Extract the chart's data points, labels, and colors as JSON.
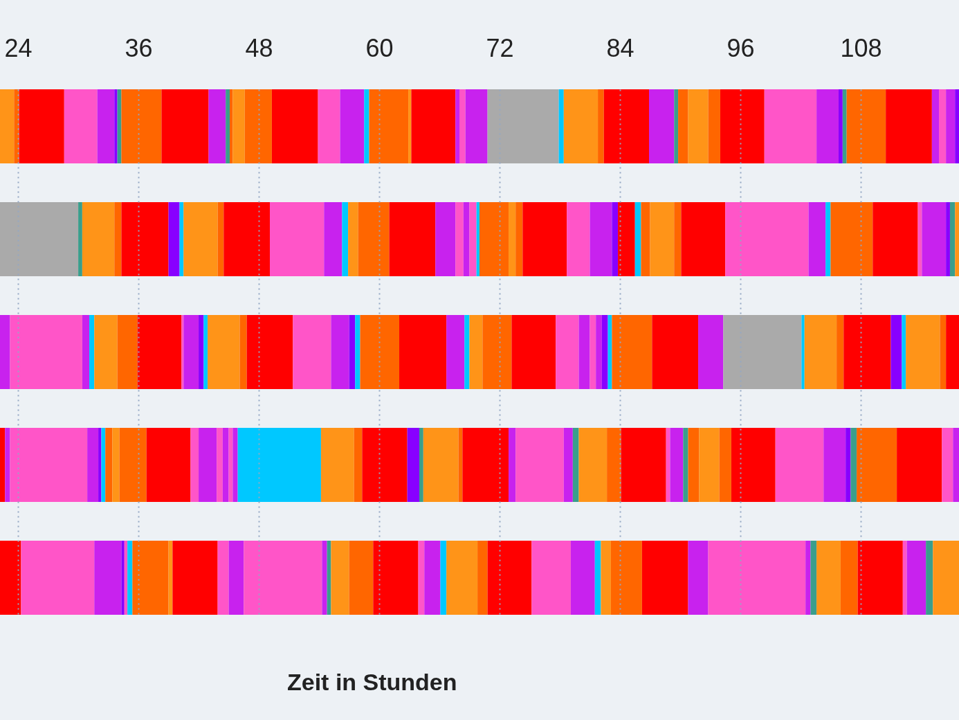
{
  "chart_data": {
    "type": "bar",
    "orientation": "horizontal",
    "categories": [
      null,
      null,
      null,
      null,
      null
    ],
    "xlim": [
      22.2,
      117.8
    ],
    "xticks": [
      24,
      36,
      48,
      60,
      72,
      84,
      96,
      108
    ],
    "grid": "x",
    "xlabel": "Zeit in Stunden",
    "series": [
      {
        "colors": [
          "#ff9418",
          "#aaaaaa",
          "#c822ee",
          "#ff0000",
          "#ff0000"
        ],
        "base": [
          22.2,
          22.2,
          22.2,
          22.2,
          22.2
        ],
        "values": [
          1.4,
          7.8,
          1.0,
          0.5,
          2.1
        ]
      },
      {
        "colors": [
          "#ff6600",
          "#3a9e8c",
          "#ff55c8",
          "#c822ee",
          "#ff55c8"
        ],
        "base": [
          23.6,
          30.0,
          23.2,
          22.7,
          24.3
        ],
        "values": [
          0.5,
          0.4,
          7.2,
          0.5,
          7.3
        ]
      },
      {
        "colors": [
          "#ff0000",
          "#ff9418",
          "#c822ee",
          "#ff55c8",
          "#c822ee"
        ],
        "base": [
          24.1,
          30.4,
          30.4,
          23.2,
          31.6
        ],
        "values": [
          4.5,
          3.2,
          0.7,
          7.7,
          2.7
        ]
      },
      {
        "colors": [
          "#ff55c8",
          "#ff6600",
          "#00c8ff",
          "#c822ee",
          "#8800ff"
        ],
        "base": [
          28.6,
          33.6,
          31.1,
          30.9,
          34.3
        ],
        "values": [
          3.3,
          0.7,
          0.5,
          1.1,
          0.3
        ]
      },
      {
        "colors": [
          "#c822ee",
          "#ff0000",
          "#ff9418",
          "#8800ff",
          "#ff55c8"
        ],
        "base": [
          31.9,
          34.3,
          31.6,
          32.0,
          34.6
        ],
        "values": [
          1.7,
          4.7,
          2.3,
          0.3,
          0.3
        ]
      },
      {
        "colors": [
          "#8800ff",
          "#8800ff",
          "#ff6600",
          "#00c8ff",
          "#00c8ff"
        ],
        "base": [
          33.6,
          39.0,
          33.9,
          32.3,
          34.9
        ],
        "values": [
          0.3,
          1.1,
          2.0,
          0.4,
          0.5
        ]
      },
      {
        "colors": [
          "#3a9e8c",
          "#00c8ff",
          "#ff0000",
          "#ff6600",
          "#ff6600"
        ],
        "base": [
          33.9,
          40.1,
          35.9,
          32.7,
          35.4
        ],
        "values": [
          0.4,
          0.4,
          4.4,
          0.7,
          3.6
        ]
      },
      {
        "colors": [
          "#ff6600",
          "#ff9418",
          "#ff55c8",
          "#ff9418",
          "#ff9418"
        ],
        "base": [
          34.3,
          40.5,
          40.3,
          33.4,
          39.0
        ],
        "values": [
          4.0,
          3.4,
          0.2,
          0.7,
          0.4
        ]
      },
      {
        "colors": [
          "#ff0000",
          "#ff6600",
          "#c822ee",
          "#ff6600",
          "#ff0000"
        ],
        "base": [
          38.3,
          43.9,
          40.5,
          34.1,
          39.4
        ],
        "values": [
          4.7,
          0.6,
          1.5,
          2.7,
          4.5
        ]
      },
      {
        "colors": [
          "#c822ee",
          "#ff0000",
          "#8800ff",
          "#ff0000",
          "#ff55c8"
        ],
        "base": [
          43.0,
          44.5,
          42.0,
          36.8,
          43.9
        ],
        "values": [
          1.7,
          4.6,
          0.5,
          4.4,
          1.1
        ]
      },
      {
        "colors": [
          "#3a9e8c",
          "#ff55c8",
          "#00c8ff",
          "#ff55c8",
          "#c822ee"
        ],
        "base": [
          44.7,
          49.1,
          42.5,
          41.2,
          45.0
        ],
        "values": [
          0.4,
          5.4,
          0.4,
          0.8,
          1.5
        ]
      },
      {
        "colors": [
          "#ff6600",
          "#c822ee",
          "#ff9418",
          "#c822ee",
          "#ff55c8"
        ],
        "base": [
          45.1,
          54.5,
          42.9,
          42.0,
          46.5
        ],
        "values": [
          0.3,
          1.8,
          3.2,
          1.8,
          7.8
        ]
      },
      {
        "colors": [
          "#ff9418",
          "#00c8ff",
          "#ff6600",
          "#ff55c8",
          "#c822ee"
        ],
        "base": [
          45.4,
          56.3,
          46.1,
          43.8,
          54.3
        ],
        "values": [
          1.2,
          0.6,
          0.7,
          0.6,
          0.5
        ]
      },
      {
        "colors": [
          "#ff6600",
          "#ff9418",
          "#ff0000",
          "#c822ee",
          "#3a9e8c"
        ],
        "base": [
          46.6,
          56.9,
          46.8,
          44.4,
          54.8
        ],
        "values": [
          2.7,
          1.0,
          4.6,
          0.6,
          0.4
        ]
      },
      {
        "colors": [
          "#ff0000",
          "#ff6600",
          "#ff55c8",
          "#ff55c8",
          "#ff9418"
        ],
        "base": [
          49.3,
          57.9,
          51.4,
          45.0,
          55.2
        ],
        "values": [
          4.6,
          3.1,
          3.8,
          0.4,
          1.8
        ]
      },
      {
        "colors": [
          "#ff55c8",
          "#ff0000",
          "#c822ee",
          "#c822ee",
          "#ff6600"
        ],
        "base": [
          53.9,
          61.0,
          55.2,
          45.4,
          57.0
        ],
        "values": [
          2.2,
          4.6,
          1.8,
          0.5,
          2.4
        ]
      },
      {
        "colors": [
          "#c822ee",
          "#c822ee",
          "#8800ff",
          "#00c8ff",
          "#ff0000"
        ],
        "base": [
          56.1,
          65.6,
          57.0,
          45.9,
          59.4
        ],
        "values": [
          2.4,
          2.0,
          0.6,
          8.3,
          4.5
        ]
      },
      {
        "colors": [
          "#00c8ff",
          "#ff55c8",
          "#00c8ff",
          "#ff9418",
          "#ff55c8"
        ],
        "base": [
          58.5,
          67.6,
          57.6,
          54.2,
          63.9
        ],
        "values": [
          0.5,
          0.8,
          0.5,
          3.3,
          0.6
        ]
      },
      {
        "colors": [
          "#ff6600",
          "#c822ee",
          "#ff6600",
          "#ff6600",
          "#c822ee"
        ],
        "base": [
          59.0,
          68.4,
          58.1,
          57.5,
          64.5
        ],
        "values": [
          3.9,
          0.6,
          3.9,
          0.8,
          1.6
        ]
      },
      {
        "colors": [
          "#ff9418",
          "#ff55c8",
          "#ff0000",
          "#ff0000",
          "#00c8ff"
        ],
        "base": [
          62.9,
          69.0,
          62.0,
          58.3,
          66.1
        ],
        "values": [
          0.3,
          0.7,
          4.7,
          4.5,
          0.6
        ]
      },
      {
        "colors": [
          "#ff0000",
          "#00c8ff",
          "#c822ee",
          "#8800ff",
          "#ff9418"
        ],
        "base": [
          63.2,
          69.7,
          66.7,
          62.8,
          66.7
        ],
        "values": [
          4.4,
          0.3,
          1.8,
          1.2,
          3.1
        ]
      },
      {
        "colors": [
          "#c822ee",
          "#ff6600",
          "#00c8ff",
          "#3a9e8c",
          "#ff6600"
        ],
        "base": [
          67.6,
          70.0,
          68.5,
          64.0,
          69.8
        ],
        "values": [
          0.4,
          2.9,
          0.5,
          0.4,
          1.0
        ]
      },
      {
        "colors": [
          "#ff55c8",
          "#ff9418",
          "#ff9418",
          "#ff9418",
          "#ff0000"
        ],
        "base": [
          68.0,
          72.9,
          69.0,
          64.4,
          70.8
        ],
        "values": [
          0.6,
          0.7,
          1.3,
          3.5,
          4.4
        ]
      },
      {
        "colors": [
          "#c822ee",
          "#ff6600",
          "#ff6600",
          "#ff6600",
          "#ff55c8"
        ],
        "base": [
          68.6,
          73.6,
          70.3,
          67.9,
          75.2
        ],
        "values": [
          2.2,
          0.7,
          2.9,
          0.4,
          3.9
        ]
      },
      {
        "colors": [
          "#aaaaaa",
          "#ff0000",
          "#ff0000",
          "#ff0000",
          "#c822ee"
        ],
        "base": [
          70.8,
          74.3,
          73.2,
          68.3,
          79.1
        ],
        "values": [
          7.1,
          4.4,
          4.4,
          4.6,
          2.4
        ]
      },
      {
        "colors": [
          "#00c8ff",
          "#ff55c8",
          "#ff55c8",
          "#c822ee",
          "#00c8ff"
        ],
        "base": [
          77.9,
          78.7,
          77.6,
          72.9,
          81.5
        ],
        "values": [
          0.5,
          2.3,
          2.3,
          0.7,
          0.6
        ]
      },
      {
        "colors": [
          "#ff9418",
          "#c822ee",
          "#c822ee",
          "#ff55c8",
          "#ff9418"
        ],
        "base": [
          78.4,
          81.0,
          79.9,
          73.6,
          82.1
        ],
        "values": [
          3.4,
          2.2,
          1.1,
          4.8,
          1.0
        ]
      },
      {
        "colors": [
          "#ff6600",
          "#8800ff",
          "#ff55c8",
          "#c822ee",
          "#ff6600"
        ],
        "base": [
          81.8,
          83.2,
          81.0,
          78.4,
          83.1
        ],
        "values": [
          0.6,
          0.6,
          0.6,
          0.9,
          3.1
        ]
      },
      {
        "colors": [
          "#ff0000",
          "#ff0000",
          "#c822ee",
          "#3a9e8c",
          "#ff0000"
        ],
        "base": [
          82.4,
          83.8,
          81.6,
          79.3,
          86.2
        ],
        "values": [
          4.5,
          1.7,
          0.6,
          0.6,
          4.6
        ]
      },
      {
        "colors": [
          "#c822ee",
          "#00c8ff",
          "#8800ff",
          "#ff9418",
          "#c822ee"
        ],
        "base": [
          86.9,
          85.5,
          82.2,
          79.9,
          90.8
        ],
        "values": [
          2.5,
          0.6,
          0.6,
          2.8,
          2.0
        ]
      },
      {
        "colors": [
          "#3a9e8c",
          "#ff6600",
          "#00c8ff",
          "#ff6600",
          "#ff55c8"
        ],
        "base": [
          89.4,
          86.1,
          82.8,
          82.7,
          92.8
        ],
        "values": [
          0.4,
          0.9,
          0.4,
          1.4,
          9.7
        ]
      },
      {
        "colors": [
          "#ff6600",
          "#ff9418",
          "#ff6600",
          "#ff0000",
          "#c822ee"
        ],
        "base": [
          89.8,
          87.0,
          83.2,
          84.1,
          102.5
        ],
        "values": [
          1.0,
          2.4,
          4.0,
          4.5,
          0.5
        ]
      },
      {
        "colors": [
          "#ff9418",
          "#ff6600",
          "#ff0000",
          "#ff55c8",
          "#3a9e8c"
        ],
        "base": [
          90.8,
          89.4,
          87.2,
          88.6,
          103.0
        ],
        "values": [
          2.0,
          0.7,
          4.6,
          0.4,
          0.6
        ]
      },
      {
        "colors": [
          "#ff6600",
          "#ff0000",
          "#c822ee",
          "#c822ee",
          "#ff9418"
        ],
        "base": [
          92.8,
          90.1,
          91.8,
          89.0,
          103.6
        ],
        "values": [
          1.2,
          4.4,
          2.5,
          1.3,
          2.4
        ]
      },
      {
        "colors": [
          "#ff0000",
          "#ff55c8",
          "#aaaaaa",
          "#3a9e8c",
          "#ff6600"
        ],
        "base": [
          94.0,
          94.5,
          94.3,
          90.3,
          106.0
        ],
        "values": [
          4.4,
          8.3,
          7.8,
          0.5,
          1.7
        ]
      },
      {
        "colors": [
          "#ff55c8",
          "#c822ee",
          "#00c8ff",
          "#ff6600",
          "#ff0000"
        ],
        "base": [
          98.4,
          102.8,
          102.1,
          90.8,
          107.7
        ],
        "values": [
          5.2,
          1.7,
          0.3,
          1.1,
          4.5
        ]
      },
      {
        "colors": [
          "#c822ee",
          "#00c8ff",
          "#ff9418",
          "#ff9418",
          "#ff55c8"
        ],
        "base": [
          103.6,
          104.5,
          102.4,
          91.9,
          112.2
        ],
        "values": [
          2.2,
          0.5,
          3.2,
          2.0,
          0.4
        ]
      },
      {
        "colors": [
          "#8800ff",
          "#ff6600",
          "#ff6600",
          "#ff6600",
          "#c822ee"
        ],
        "base": [
          105.8,
          105.0,
          105.6,
          93.9,
          112.6
        ],
        "values": [
          0.4,
          4.2,
          0.7,
          1.2,
          1.9
        ]
      },
      {
        "colors": [
          "#3a9e8c",
          "#ff0000",
          "#ff0000",
          "#ff0000",
          "#3a9e8c"
        ],
        "base": [
          106.2,
          109.2,
          106.3,
          95.1,
          114.5
        ],
        "values": [
          0.4,
          4.5,
          4.7,
          4.4,
          0.7
        ]
      },
      {
        "colors": [
          "#ff6600",
          "#ff55c8",
          "#8800ff",
          "#ff55c8",
          "#ff9418"
        ],
        "base": [
          106.6,
          113.7,
          111.0,
          99.5,
          115.2
        ],
        "values": [
          3.9,
          0.4,
          1.1,
          4.8,
          2.6
        ]
      },
      {
        "colors": [
          "#ff0000",
          "#c822ee",
          "#00c8ff",
          "#c822ee",
          null
        ],
        "base": [
          110.5,
          114.1,
          112.1,
          104.3,
          null
        ],
        "values": [
          4.6,
          2.4,
          0.4,
          2.2,
          null
        ]
      },
      {
        "colors": [
          "#c822ee",
          "#8800ff",
          "#ff9418",
          "#8800ff",
          null
        ],
        "base": [
          115.1,
          116.5,
          112.5,
          106.5,
          null
        ],
        "values": [
          0.7,
          0.4,
          3.4,
          0.5,
          null
        ]
      },
      {
        "colors": [
          "#ff55c8",
          "#3a9e8c",
          "#ff6600",
          "#3a9e8c",
          null
        ],
        "base": [
          115.8,
          116.9,
          115.9,
          107.0,
          null
        ],
        "values": [
          0.7,
          0.5,
          0.6,
          0.6,
          null
        ]
      },
      {
        "colors": [
          "#c822ee",
          "#ff9418",
          "#ff0000",
          "#ff6600",
          null
        ],
        "base": [
          116.5,
          117.4,
          116.5,
          107.6,
          null
        ],
        "values": [
          0.9,
          0.4,
          1.3,
          4.0,
          null
        ]
      },
      {
        "colors": [
          "#8800ff",
          null,
          null,
          "#ff0000",
          null
        ],
        "base": [
          117.4,
          null,
          null,
          111.6,
          null
        ],
        "values": [
          0.4,
          null,
          null,
          4.5,
          null
        ]
      },
      {
        "colors": [
          null,
          null,
          null,
          "#ff55c8",
          null
        ],
        "base": [
          null,
          null,
          null,
          116.1,
          null
        ],
        "values": [
          null,
          null,
          null,
          1.1,
          null
        ]
      },
      {
        "colors": [
          null,
          null,
          null,
          "#c822ee",
          null
        ],
        "base": [
          null,
          null,
          null,
          117.2,
          null
        ],
        "values": [
          null,
          null,
          null,
          0.6,
          null
        ]
      }
    ]
  }
}
